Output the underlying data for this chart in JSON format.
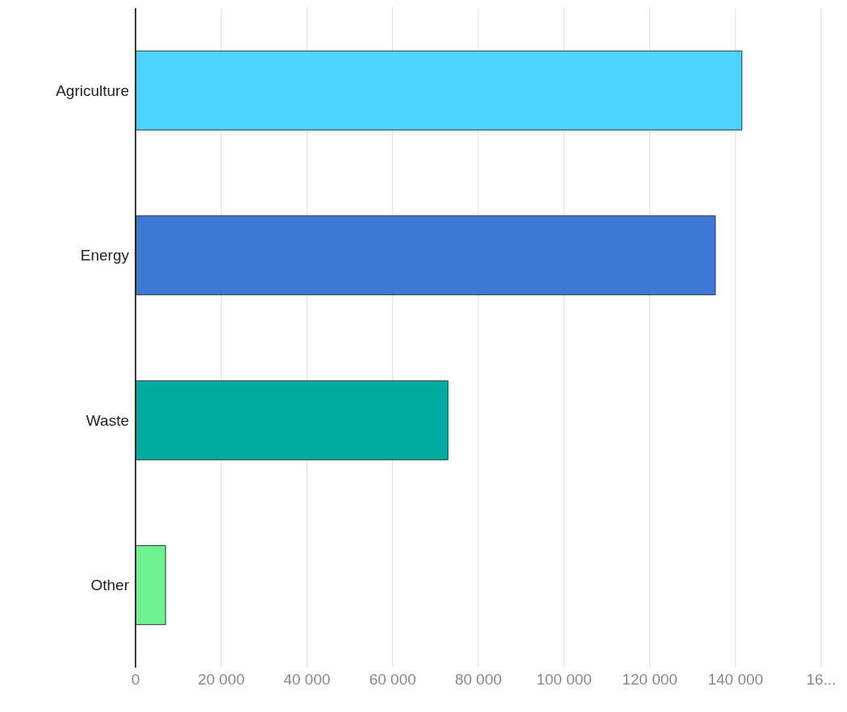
{
  "chart_data": {
    "type": "bar",
    "orientation": "horizontal",
    "categories": [
      "Agriculture",
      "Energy",
      "Waste",
      "Other"
    ],
    "values": [
      141500,
      135300,
      72900,
      7000
    ],
    "colors": [
      "#4ad4ff",
      "#3d78d4",
      "#00ab9f",
      "#6ef290"
    ],
    "xlim": [
      0,
      160000
    ],
    "xticks": [
      {
        "value": 0,
        "label": "0"
      },
      {
        "value": 20000,
        "label": "20 000"
      },
      {
        "value": 40000,
        "label": "40 000"
      },
      {
        "value": 60000,
        "label": "60 000"
      },
      {
        "value": 80000,
        "label": "80 000"
      },
      {
        "value": 100000,
        "label": "100 000"
      },
      {
        "value": 120000,
        "label": "120 000"
      },
      {
        "value": 140000,
        "label": "140 000"
      },
      {
        "value": 160000,
        "label": "16..."
      }
    ],
    "grid": "x"
  }
}
